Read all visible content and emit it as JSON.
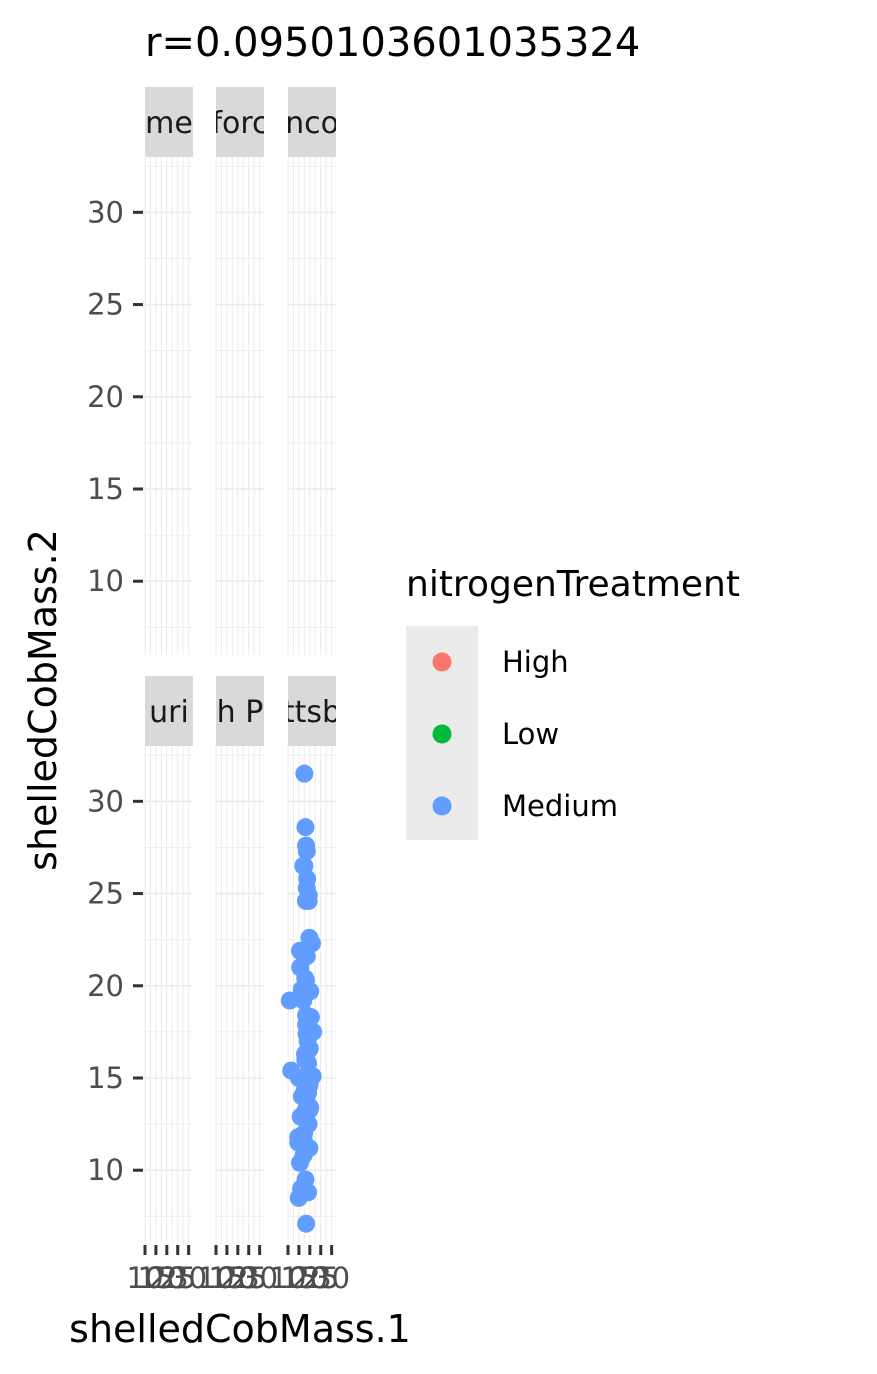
{
  "chart_data": {
    "type": "scatter",
    "title": "r=0.0950103601035324",
    "xlabel": "shelledCobMass.1",
    "ylabel": "shelledCobMass.2",
    "ylim": [
      6.0,
      33.0
    ],
    "xlim": [
      10,
      32
    ],
    "y_ticks": [
      "10",
      "15",
      "20",
      "25",
      "30"
    ],
    "x_tick_labels": [
      "10",
      "15",
      "20",
      "25",
      "30"
    ],
    "facet_strips": [
      "me",
      "forc",
      "nco",
      "uri",
      "h P",
      "ttsb"
    ],
    "grid": true,
    "legend_position": "right",
    "legend": {
      "title": "nitrogenTreatment",
      "items": [
        {
          "label": "High",
          "color": "#F8766D"
        },
        {
          "label": "Low",
          "color": "#00BA38"
        },
        {
          "label": "Medium",
          "color": "#619CFF"
        }
      ]
    },
    "panels": [
      {
        "strip": "me",
        "series": []
      },
      {
        "strip": "forc",
        "series": []
      },
      {
        "strip": "nco",
        "series": []
      },
      {
        "strip": "uri",
        "series": []
      },
      {
        "strip": "h P",
        "series": []
      },
      {
        "strip": "ttsb",
        "series": [
          {
            "name": "Medium",
            "color": "#619CFF",
            "x": [
              17.5,
              18.0,
              18.3,
              18.6,
              17.5,
              17.0,
              18.8,
              18.6,
              19.5,
              18.2,
              19.5,
              21.0,
              19.8,
              15.5,
              18.6,
              15.6,
              17.9,
              18.2,
              20.2,
              16.3,
              17.0,
              16.7,
              18.3,
              19.0,
              20.5,
              10.8,
              18.3,
              21.5,
              18.5,
              19.0,
              20.0,
              17.8,
              18.6,
              19.4,
              17.9,
              19.2,
              11.5,
              19.5,
              19.3,
              21.3,
              15.0,
              20.0,
              19.8,
              17.6,
              19.2,
              16.4,
              18.6,
              20.2,
              17.9,
              19.3,
              20.0,
              15.8,
              19.4,
              17.4,
              14.7,
              14.7,
              17.1,
              19.8,
              15.5,
              17.1,
              18.0,
              16.0,
              16.8,
              19.2,
              14.9,
              18.3
            ],
            "y": [
              31.5,
              28.6,
              27.6,
              27.3,
              26.5,
              26.5,
              25.8,
              25.3,
              24.9,
              24.6,
              24.6,
              22.3,
              22.6,
              21.9,
              21.6,
              21.0,
              20.4,
              20.3,
              19.7,
              19.8,
              19.2,
              19.3,
              18.4,
              18.3,
              18.3,
              19.2,
              17.9,
              17.5,
              17.4,
              17.0,
              16.6,
              16.3,
              16.4,
              16.5,
              16.0,
              15.8,
              15.4,
              15.2,
              15.1,
              15.1,
              15.0,
              14.8,
              14.6,
              14.3,
              14.2,
              14.0,
              13.7,
              13.4,
              13.2,
              13.2,
              13.3,
              12.9,
              12.5,
              12.0,
              11.8,
              11.5,
              11.7,
              11.2,
              10.4,
              10.8,
              9.5,
              9.0,
              8.8,
              8.8,
              8.5,
              7.1
            ]
          }
        ]
      }
    ]
  }
}
